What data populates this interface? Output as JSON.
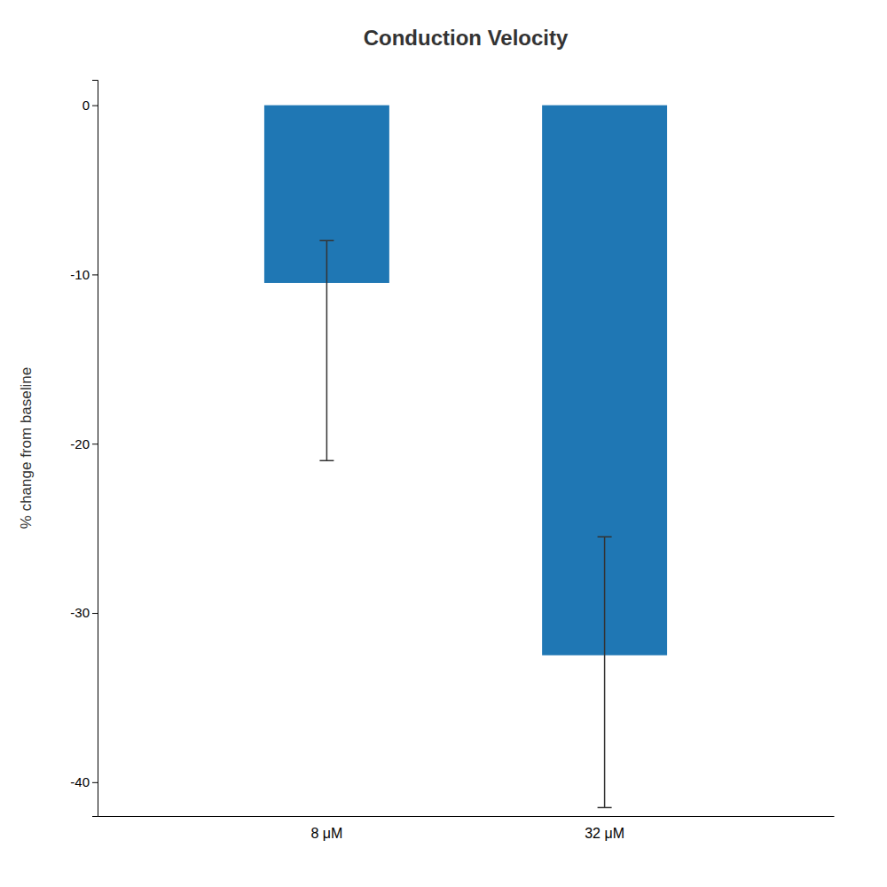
{
  "chart_data": {
    "type": "bar",
    "title": "Conduction Velocity",
    "ylabel": "% change from baseline",
    "categories": [
      "8 μM",
      "32 μM"
    ],
    "values": [
      -10.5,
      -32.5
    ],
    "errors_upper": [
      2.5,
      7.0
    ],
    "errors_lower": [
      10.5,
      9.0
    ],
    "ylim": [
      -42,
      1.5
    ],
    "yticks": [
      0,
      -10,
      -20,
      -30,
      -40
    ],
    "grid": false
  }
}
